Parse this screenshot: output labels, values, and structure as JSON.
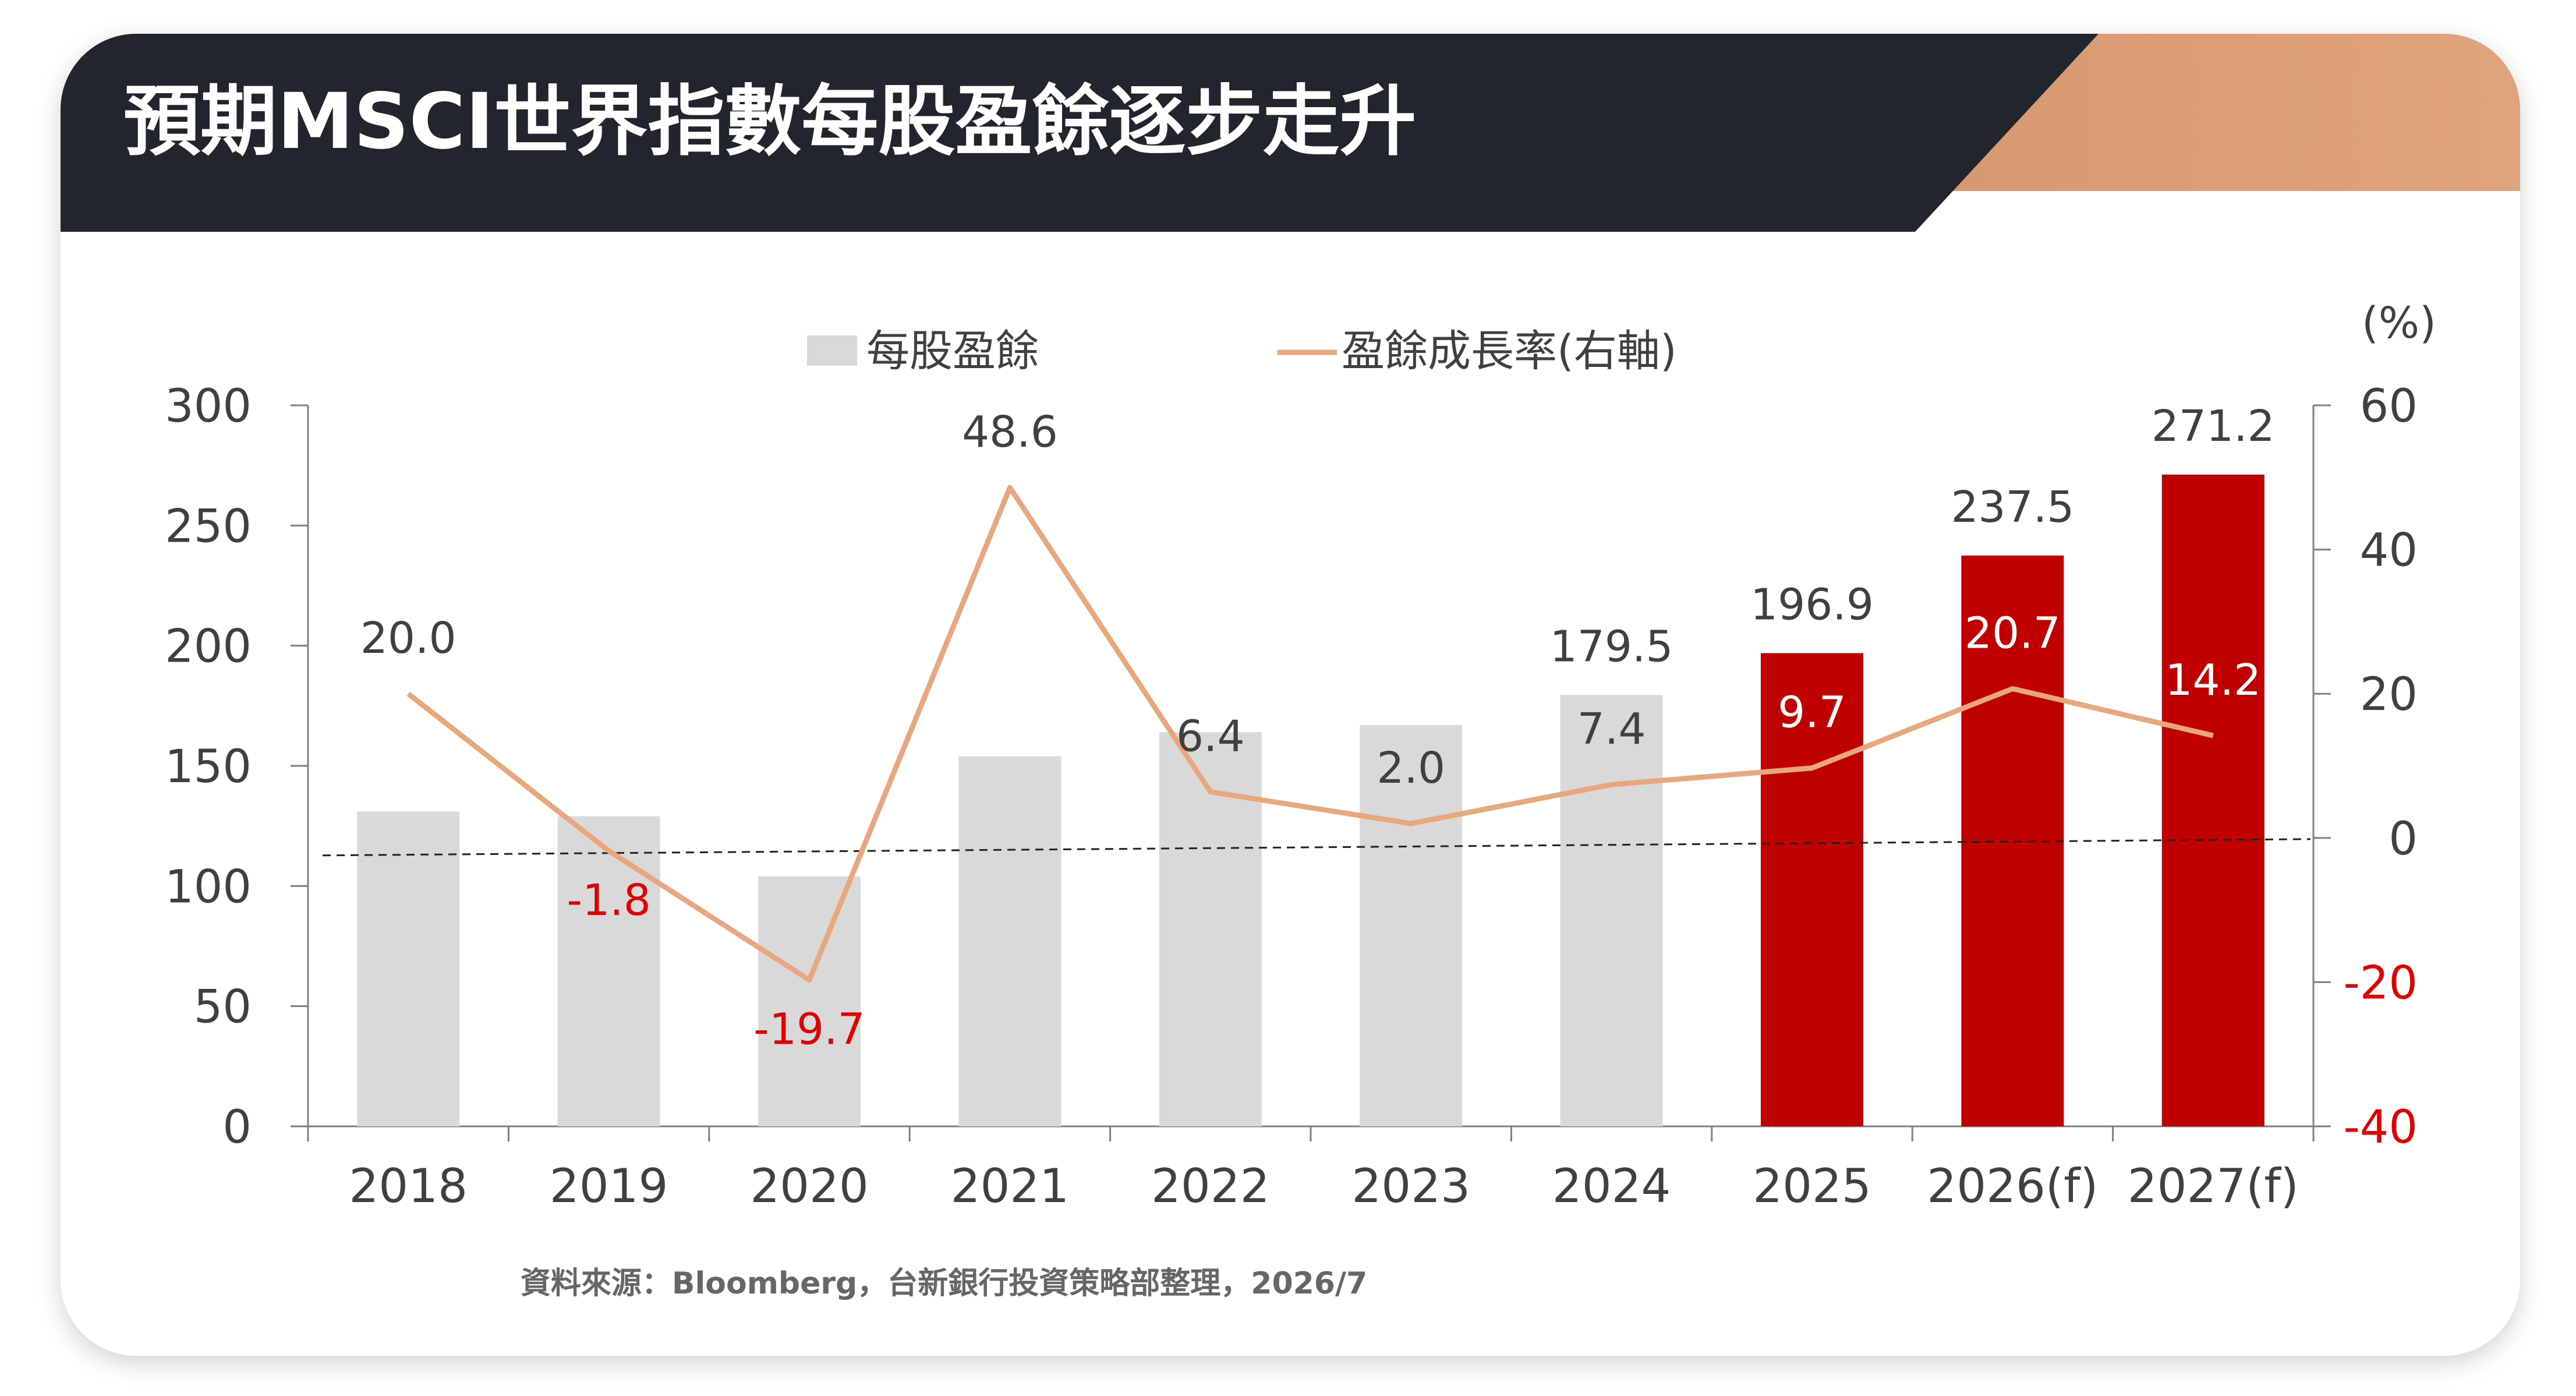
{
  "title": "預期MSCI世界指數每股盈餘逐步走升",
  "source": "資料來源：Bloomberg，台新銀行投資策略部整理，2026/7",
  "colors": {
    "header_dark": "#23252e",
    "accent_copper_start": "#b8734a",
    "accent_copper_end": "#e0a47c",
    "bar_actual": "#d9d9d9",
    "bar_forecast": "#c00000",
    "line": "#e8a77c",
    "negative": "#e00000",
    "text": "#404040",
    "white": "#ffffff"
  },
  "chart_data": {
    "type": "bar",
    "categories": [
      "2018",
      "2019",
      "2020",
      "2021",
      "2022",
      "2023",
      "2024",
      "2025",
      "2026(f)",
      "2027(f)"
    ],
    "series": [
      {
        "name": "每股盈餘",
        "type": "bar",
        "axis": "left",
        "values": [
          131,
          129,
          104,
          154,
          164,
          167,
          179.5,
          196.9,
          237.5,
          271.2
        ],
        "labels": [
          "",
          "",
          "",
          "",
          "",
          "",
          "179.5",
          "196.9",
          "237.5",
          "271.2"
        ],
        "highlight_from_index": 7
      },
      {
        "name": "盈餘成長率(右軸)",
        "type": "line",
        "axis": "right",
        "values": [
          20.0,
          -1.8,
          -19.7,
          48.6,
          6.4,
          2.0,
          7.4,
          9.7,
          20.7,
          14.2
        ],
        "labels": [
          "20.0",
          "-1.8",
          "-19.7",
          "48.6",
          "6.4",
          "2.0",
          "7.4",
          "9.7",
          "20.7",
          "14.2"
        ]
      }
    ],
    "y_left": {
      "ylim": [
        0,
        300
      ],
      "ticks": [
        "0",
        "50",
        "100",
        "150",
        "200",
        "250",
        "300"
      ]
    },
    "y_right": {
      "ylim": [
        -40,
        60
      ],
      "ticks": [
        "-40",
        "-20",
        "0",
        "20",
        "40",
        "60"
      ],
      "unit": "(%)"
    },
    "legend_position": "top",
    "zero_line_right_axis": "dashed",
    "grid": false
  }
}
